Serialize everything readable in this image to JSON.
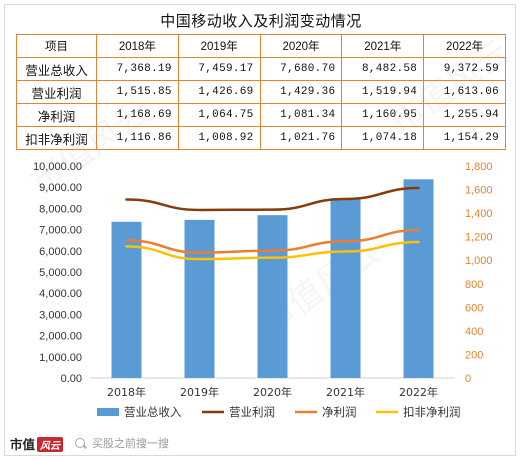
{
  "title": "中国移动收入及利润变动情况",
  "table": {
    "header": [
      "项目",
      "2018年",
      "2019年",
      "2020年",
      "2021年",
      "2022年"
    ],
    "rows": [
      {
        "label": "营业总收入",
        "values": [
          "7,368.19",
          "7,459.17",
          "7,680.70",
          "8,482.58",
          "9,372.59"
        ]
      },
      {
        "label": "营业利润",
        "values": [
          "1,515.85",
          "1,426.69",
          "1,429.36",
          "1,519.94",
          "1,613.06"
        ]
      },
      {
        "label": "净利润",
        "values": [
          "1,168.69",
          "1,064.75",
          "1,081.34",
          "1,160.95",
          "1,255.94"
        ]
      },
      {
        "label": "扣非净利润",
        "values": [
          "1,116.86",
          "1,008.92",
          "1,021.76",
          "1,074.18",
          "1,154.29"
        ]
      }
    ]
  },
  "chart_data": {
    "type": "bar",
    "categories": [
      "2018年",
      "2019年",
      "2020年",
      "2021年",
      "2022年"
    ],
    "series": [
      {
        "name": "营业总收入",
        "kind": "bar",
        "axis": "left",
        "color": "#5b9bd5",
        "values": [
          7368.19,
          7459.17,
          7680.7,
          8482.58,
          9372.59
        ]
      },
      {
        "name": "营业利润",
        "kind": "line",
        "axis": "right",
        "color": "#843c0c",
        "values": [
          1515.85,
          1426.69,
          1429.36,
          1519.94,
          1613.06
        ]
      },
      {
        "name": "净利润",
        "kind": "line",
        "axis": "right",
        "color": "#ed7d31",
        "values": [
          1168.69,
          1064.75,
          1081.34,
          1160.95,
          1255.94
        ]
      },
      {
        "name": "扣非净利润",
        "kind": "line",
        "axis": "right",
        "color": "#ffc000",
        "values": [
          1116.86,
          1008.92,
          1021.76,
          1074.18,
          1154.29
        ]
      }
    ],
    "y_left": {
      "min": 0,
      "max": 10000,
      "step": 1000,
      "ticks": [
        "0.00",
        "1,000.00",
        "2,000.00",
        "3,000.00",
        "4,000.00",
        "5,000.00",
        "6,000.00",
        "7,000.00",
        "8,000.00",
        "9,000.00",
        "10,000.00"
      ]
    },
    "y_right": {
      "min": 0,
      "max": 1800,
      "step": 200,
      "ticks": [
        "0",
        "200",
        "400",
        "600",
        "800",
        "1,000",
        "1,200",
        "1,400",
        "1,600",
        "1,800"
      ],
      "color": "#e2842f"
    },
    "grid": false,
    "legend_position": "bottom"
  },
  "footer": {
    "brand": "市值",
    "brand_badge": "风云",
    "search_text": "买股之前搜一搜"
  }
}
